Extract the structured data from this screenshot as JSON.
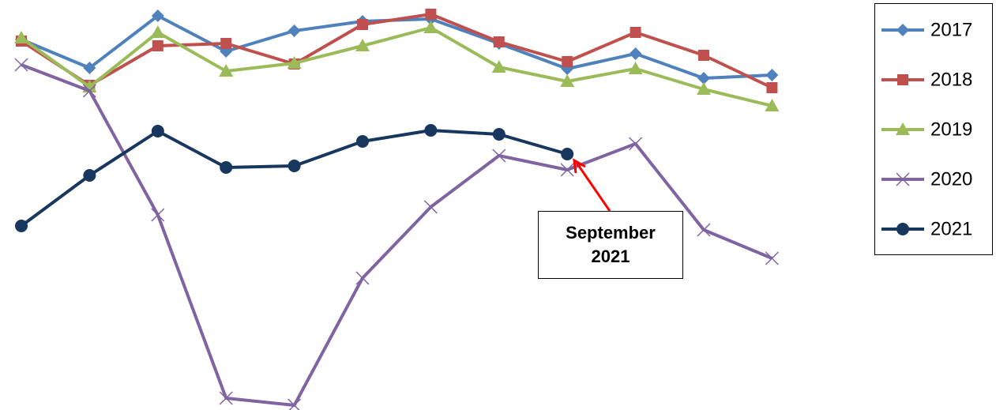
{
  "chart_data": {
    "type": "line",
    "categories": [
      null,
      null,
      null,
      null,
      null,
      null,
      null,
      null,
      null,
      null,
      null,
      null
    ],
    "ylim": [
      0,
      519
    ],
    "series": [
      {
        "name": "2017",
        "color": "#4f81bd",
        "marker": "diamond",
        "values": [
          469,
          433,
          499,
          454,
          480,
          492,
          495,
          464,
          432,
          451,
          420,
          424
        ]
      },
      {
        "name": "2018",
        "color": "#c0504d",
        "marker": "square",
        "values": [
          467,
          411,
          461,
          464,
          438,
          488,
          501,
          466,
          441,
          478,
          449,
          408
        ]
      },
      {
        "name": "2019",
        "color": "#9bbb59",
        "marker": "triangle",
        "values": [
          471,
          409,
          478,
          429,
          439,
          461,
          484,
          434,
          416,
          432,
          406,
          385
        ]
      },
      {
        "name": "2020",
        "color": "#8064a2",
        "marker": "x",
        "values": [
          437,
          404,
          247,
          15,
          6,
          167,
          257,
          322,
          304,
          337,
          228,
          192
        ]
      },
      {
        "name": "2021",
        "color": "#17375e",
        "marker": "circle",
        "values": [
          233,
          297,
          353,
          307,
          309,
          340,
          354,
          349,
          324,
          null,
          null,
          null
        ]
      }
    ],
    "annotation": {
      "lines": [
        "September",
        "2021"
      ]
    },
    "legend": "right"
  }
}
